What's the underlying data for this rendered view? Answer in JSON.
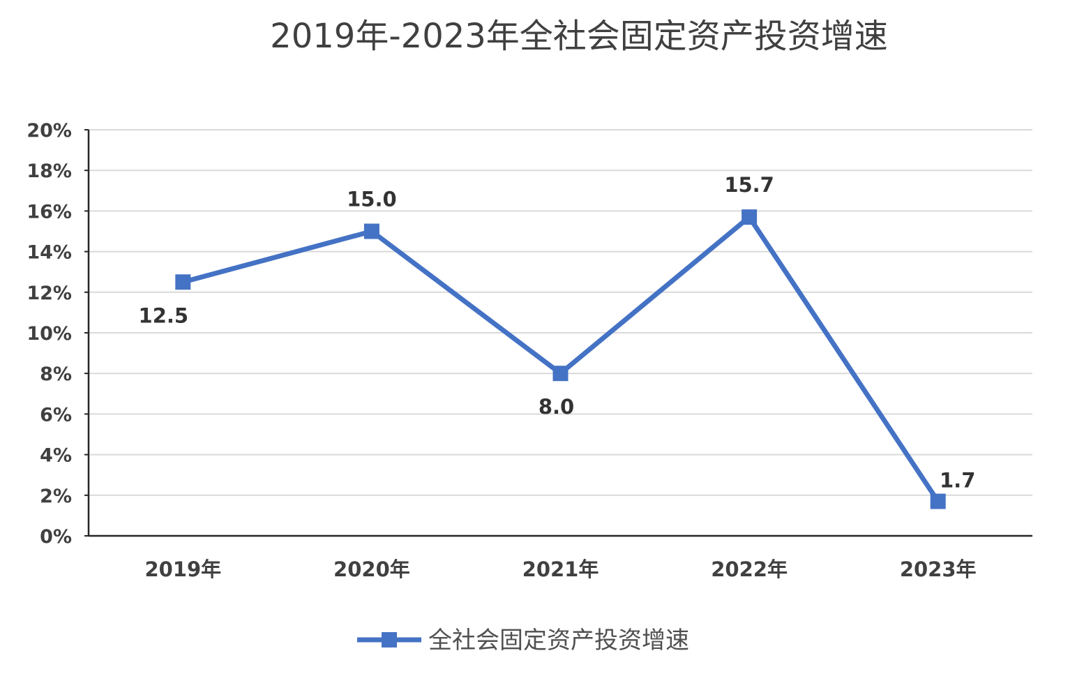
{
  "chart_data": {
    "type": "line",
    "title": "2019年-2023年全社会固定资产投资增速",
    "categories": [
      "2019年",
      "2020年",
      "2021年",
      "2022年",
      "2023年"
    ],
    "series": [
      {
        "name": "全社会固定资产投资增速",
        "values": [
          12.5,
          15.0,
          8.0,
          15.7,
          1.7
        ],
        "data_labels": [
          "12.5",
          "15.0",
          "8.0",
          "15.7",
          "1.7"
        ],
        "color": "#4472c4",
        "marker": "square"
      }
    ],
    "yticks": [
      "0%",
      "2%",
      "4%",
      "6%",
      "8%",
      "10%",
      "12%",
      "14%",
      "16%",
      "18%",
      "20%"
    ],
    "ylim": [
      0,
      20
    ],
    "grid": true,
    "legend_position": "bottom"
  }
}
